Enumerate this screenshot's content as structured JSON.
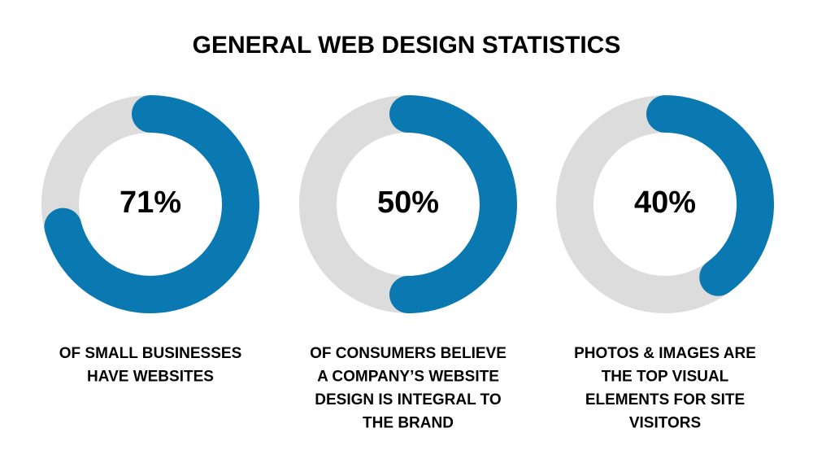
{
  "title": "GENERAL WEB DESIGN STATISTICS",
  "chart_data": [
    {
      "type": "donut",
      "values": [
        71
      ],
      "value_labels": [
        "71%"
      ],
      "max": 100,
      "color": "#0a79b2",
      "track_color": "#dcdcdc",
      "caption": [
        "OF SMALL BUSINESSES",
        "HAVE WEBSITES"
      ]
    },
    {
      "type": "donut",
      "values": [
        50
      ],
      "value_labels": [
        "50%"
      ],
      "max": 100,
      "color": "#0a79b2",
      "track_color": "#dcdcdc",
      "caption": [
        "OF CONSUMERS BELIEVE",
        "A COMPANY’S WEBSITE",
        "DESIGN IS INTEGRAL TO",
        "THE BRAND"
      ]
    },
    {
      "type": "donut",
      "values": [
        40
      ],
      "value_labels": [
        "40%"
      ],
      "max": 100,
      "color": "#0a79b2",
      "track_color": "#dcdcdc",
      "caption": [
        "PHOTOS & IMAGES ARE",
        "THE TOP VISUAL",
        "ELEMENTS FOR SITE",
        "VISITORS"
      ]
    }
  ]
}
